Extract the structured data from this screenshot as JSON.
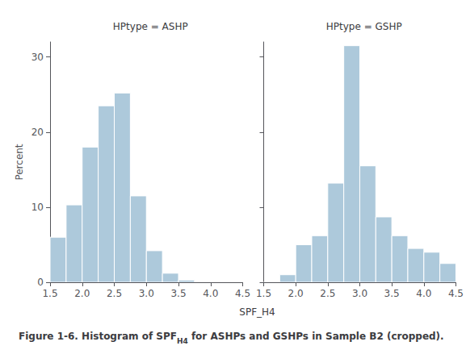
{
  "chart_data": [
    {
      "type": "histogram",
      "title": "HPtype = ASHP",
      "bins": [
        1.5,
        1.75,
        2.0,
        2.25,
        2.5,
        2.75,
        3.0,
        3.25,
        3.5,
        3.75,
        4.0,
        4.25,
        4.5
      ],
      "values": [
        6.0,
        10.3,
        18.0,
        23.5,
        25.2,
        11.5,
        4.2,
        1.2,
        0.3,
        0.0,
        0.0,
        0.0
      ],
      "color": "#adc9db",
      "xlabel": "SPF_H4",
      "ylabel": "Percent",
      "xlim": [
        1.5,
        4.5
      ],
      "xticks": [
        1.5,
        {
          "value": 2.0,
          "label": "2.0"
        },
        2.5,
        {
          "value": 3.0,
          "label": "3.0"
        },
        3.5,
        {
          "value": 4.0,
          "label": "4.0"
        },
        4.5
      ],
      "ylim": [
        0,
        32
      ],
      "yticks": [
        0,
        10,
        20,
        30
      ],
      "grid": false,
      "annotations": [
        "Figure 1-6. Histogram of SPF",
        "H4",
        " for ASHPs and GSHPs in Sample B2 (cropped)."
      ]
    },
    {
      "type": "histogram",
      "title": "HPtype = GSHP",
      "bins": [
        1.5,
        1.75,
        2.0,
        2.25,
        2.5,
        2.75,
        3.0,
        3.25,
        3.5,
        3.75,
        4.0,
        4.25,
        4.5
      ],
      "values": [
        0.0,
        1.0,
        5.0,
        6.2,
        13.2,
        31.5,
        15.5,
        8.7,
        6.2,
        4.5,
        4.0,
        2.5
      ],
      "color": "#adc9db",
      "xlim": [
        1.5,
        4.5
      ],
      "xticks": [
        1.5,
        {
          "value": 2.0,
          "label": "2.0"
        },
        2.5,
        {
          "value": 3.0,
          "label": "3.0"
        },
        3.5,
        {
          "value": 4.0,
          "label": "4.0"
        },
        4.5
      ],
      "ylim": [
        0,
        32
      ],
      "yticks": [
        0,
        10,
        20,
        30
      ],
      "grid": false,
      "tick_labels": "x"
    }
  ]
}
